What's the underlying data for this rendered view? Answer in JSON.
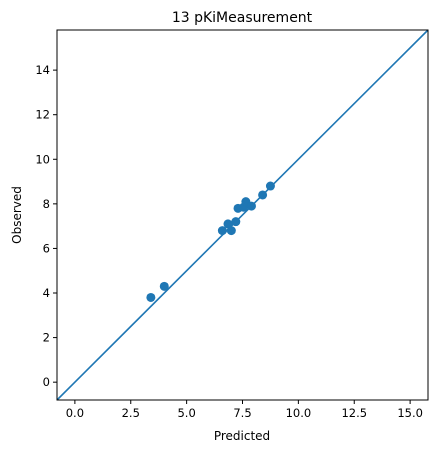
{
  "chart_data": {
    "type": "scatter",
    "title": "13 pKiMeasurement",
    "xlabel": "Predicted",
    "ylabel": "Observed",
    "xlim": [
      -0.8,
      15.8
    ],
    "ylim": [
      -0.8,
      15.8
    ],
    "x_ticks": [
      0.0,
      2.5,
      5.0,
      7.5,
      10.0,
      12.5,
      15.0
    ],
    "x_tick_labels": [
      "0.0",
      "2.5",
      "5.0",
      "7.5",
      "10.0",
      "12.5",
      "15.0"
    ],
    "y_ticks": [
      0,
      2,
      4,
      6,
      8,
      10,
      12,
      14
    ],
    "y_tick_labels": [
      "0",
      "2",
      "4",
      "6",
      "8",
      "10",
      "12",
      "14"
    ],
    "grid": false,
    "series": [
      {
        "x": [
          3.4,
          4.0,
          6.6,
          6.85,
          7.0,
          7.2,
          7.3,
          7.55,
          7.65,
          7.9,
          8.4,
          8.75
        ],
        "y": [
          3.8,
          4.3,
          6.8,
          7.1,
          6.8,
          7.2,
          7.8,
          7.85,
          8.1,
          7.9,
          8.4,
          8.8
        ],
        "color": "#1f77b4"
      }
    ],
    "reference_line": {
      "type": "identity",
      "from": -0.8,
      "to": 15.8,
      "color": "#1f77b4"
    }
  }
}
